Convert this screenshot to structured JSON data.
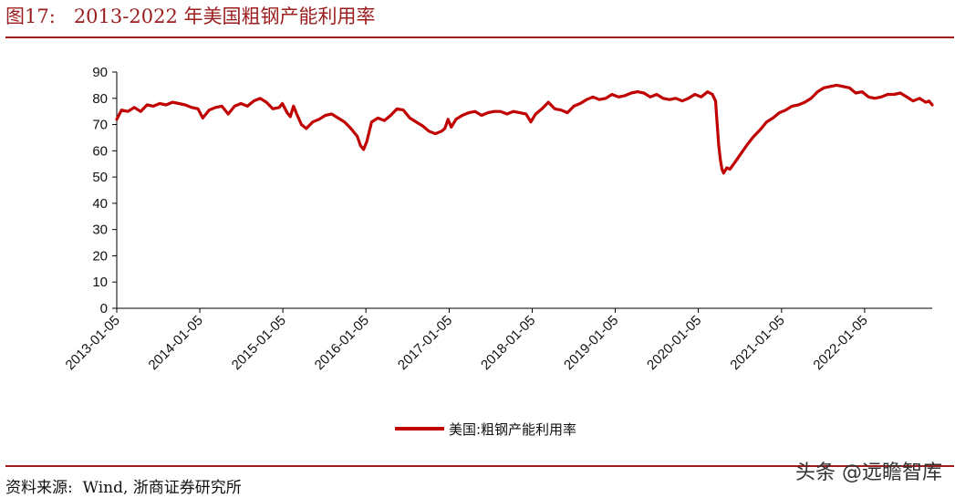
{
  "header": {
    "title": "图17:   2013-2022 年美国粗钢产能利用率"
  },
  "footer": {
    "source": "资料来源:  Wind, 浙商证券研究所",
    "watermark": "头条 @远瞻智库"
  },
  "colors": {
    "line": "#c00000",
    "rule": "#a11b1b"
  },
  "chart_data": {
    "type": "line",
    "title": "",
    "xlabel": "",
    "ylabel": "",
    "ylim": [
      0,
      90
    ],
    "yticks": [
      "0",
      "10",
      "20",
      "30",
      "40",
      "50",
      "60",
      "70",
      "80",
      "90"
    ],
    "xlim": [
      "2013-01-05",
      "2022-10-29"
    ],
    "xticks": [
      "2013-01-05",
      "2014-01-05",
      "2015-01-05",
      "2016-01-05",
      "2017-01-05",
      "2018-01-05",
      "2019-01-05",
      "2020-01-05",
      "2021-01-05",
      "2022-01-05"
    ],
    "grid": false,
    "legend": "bottom-center",
    "series": [
      {
        "name": "美国:粗钢产能利用率",
        "points": [
          [
            "2013-01-05",
            72.0
          ],
          [
            "2013-01-26",
            75.5
          ],
          [
            "2013-02-23",
            75.0
          ],
          [
            "2013-03-23",
            76.5
          ],
          [
            "2013-04-20",
            75.0
          ],
          [
            "2013-05-18",
            77.5
          ],
          [
            "2013-06-15",
            77.0
          ],
          [
            "2013-07-13",
            78.0
          ],
          [
            "2013-08-10",
            77.5
          ],
          [
            "2013-09-07",
            78.5
          ],
          [
            "2013-10-05",
            78.0
          ],
          [
            "2013-11-02",
            77.5
          ],
          [
            "2013-11-30",
            76.5
          ],
          [
            "2013-12-28",
            76.0
          ],
          [
            "2014-01-18",
            72.5
          ],
          [
            "2014-02-15",
            75.5
          ],
          [
            "2014-03-15",
            76.5
          ],
          [
            "2014-04-12",
            77.0
          ],
          [
            "2014-05-10",
            74.0
          ],
          [
            "2014-06-07",
            77.0
          ],
          [
            "2014-07-05",
            78.0
          ],
          [
            "2014-08-02",
            77.0
          ],
          [
            "2014-08-30",
            79.0
          ],
          [
            "2014-09-27",
            80.0
          ],
          [
            "2014-10-25",
            78.5
          ],
          [
            "2014-11-22",
            76.0
          ],
          [
            "2014-12-20",
            76.5
          ],
          [
            "2015-01-03",
            78.0
          ],
          [
            "2015-01-24",
            74.5
          ],
          [
            "2015-02-07",
            73.0
          ],
          [
            "2015-02-21",
            77.0
          ],
          [
            "2015-03-07",
            74.0
          ],
          [
            "2015-03-28",
            70.0
          ],
          [
            "2015-04-18",
            68.5
          ],
          [
            "2015-05-16",
            71.0
          ],
          [
            "2015-06-13",
            72.0
          ],
          [
            "2015-07-11",
            73.5
          ],
          [
            "2015-08-08",
            74.0
          ],
          [
            "2015-09-05",
            72.5
          ],
          [
            "2015-10-03",
            71.0
          ],
          [
            "2015-10-31",
            68.5
          ],
          [
            "2015-11-28",
            65.5
          ],
          [
            "2015-12-12",
            62.0
          ],
          [
            "2015-12-26",
            60.5
          ],
          [
            "2016-01-09",
            63.5
          ],
          [
            "2016-01-30",
            71.0
          ],
          [
            "2016-02-27",
            72.5
          ],
          [
            "2016-03-26",
            71.5
          ],
          [
            "2016-04-23",
            73.5
          ],
          [
            "2016-05-21",
            76.0
          ],
          [
            "2016-06-18",
            75.5
          ],
          [
            "2016-07-16",
            72.5
          ],
          [
            "2016-08-13",
            71.0
          ],
          [
            "2016-09-10",
            69.5
          ],
          [
            "2016-10-08",
            67.5
          ],
          [
            "2016-11-05",
            66.5
          ],
          [
            "2016-12-03",
            67.5
          ],
          [
            "2016-12-17",
            68.5
          ],
          [
            "2016-12-31",
            72.0
          ],
          [
            "2017-01-14",
            69.0
          ],
          [
            "2017-02-04",
            72.0
          ],
          [
            "2017-03-04",
            73.5
          ],
          [
            "2017-04-01",
            74.5
          ],
          [
            "2017-04-29",
            75.0
          ],
          [
            "2017-05-27",
            73.5
          ],
          [
            "2017-06-24",
            74.5
          ],
          [
            "2017-07-22",
            75.0
          ],
          [
            "2017-08-19",
            75.0
          ],
          [
            "2017-09-16",
            74.0
          ],
          [
            "2017-10-14",
            75.0
          ],
          [
            "2017-11-11",
            74.5
          ],
          [
            "2017-12-09",
            74.0
          ],
          [
            "2017-12-30",
            71.0
          ],
          [
            "2018-01-20",
            74.0
          ],
          [
            "2018-02-17",
            76.0
          ],
          [
            "2018-03-17",
            78.5
          ],
          [
            "2018-04-14",
            76.0
          ],
          [
            "2018-05-12",
            75.5
          ],
          [
            "2018-06-09",
            74.5
          ],
          [
            "2018-07-07",
            77.0
          ],
          [
            "2018-08-04",
            78.0
          ],
          [
            "2018-09-01",
            79.5
          ],
          [
            "2018-09-29",
            80.5
          ],
          [
            "2018-10-27",
            79.5
          ],
          [
            "2018-11-24",
            80.0
          ],
          [
            "2018-12-22",
            81.5
          ],
          [
            "2019-01-19",
            80.5
          ],
          [
            "2019-02-16",
            81.0
          ],
          [
            "2019-03-16",
            82.0
          ],
          [
            "2019-04-13",
            82.5
          ],
          [
            "2019-05-11",
            82.0
          ],
          [
            "2019-06-08",
            80.5
          ],
          [
            "2019-07-06",
            81.5
          ],
          [
            "2019-08-03",
            80.0
          ],
          [
            "2019-08-31",
            79.5
          ],
          [
            "2019-09-28",
            80.0
          ],
          [
            "2019-10-26",
            79.0
          ],
          [
            "2019-11-23",
            80.0
          ],
          [
            "2019-12-21",
            81.5
          ],
          [
            "2020-01-18",
            80.5
          ],
          [
            "2020-02-15",
            82.5
          ],
          [
            "2020-03-07",
            81.5
          ],
          [
            "2020-03-21",
            79.0
          ],
          [
            "2020-03-28",
            70.0
          ],
          [
            "2020-04-04",
            62.0
          ],
          [
            "2020-04-11",
            56.5
          ],
          [
            "2020-04-18",
            53.0
          ],
          [
            "2020-04-25",
            51.5
          ],
          [
            "2020-05-09",
            53.5
          ],
          [
            "2020-05-23",
            53.0
          ],
          [
            "2020-06-13",
            55.5
          ],
          [
            "2020-07-11",
            59.0
          ],
          [
            "2020-08-08",
            62.5
          ],
          [
            "2020-09-05",
            65.5
          ],
          [
            "2020-10-03",
            68.0
          ],
          [
            "2020-10-31",
            71.0
          ],
          [
            "2020-11-28",
            72.5
          ],
          [
            "2020-12-26",
            74.5
          ],
          [
            "2021-01-23",
            75.5
          ],
          [
            "2021-02-20",
            77.0
          ],
          [
            "2021-03-20",
            77.5
          ],
          [
            "2021-04-17",
            78.5
          ],
          [
            "2021-05-15",
            80.0
          ],
          [
            "2021-06-12",
            82.5
          ],
          [
            "2021-07-10",
            84.0
          ],
          [
            "2021-08-07",
            84.5
          ],
          [
            "2021-09-04",
            85.0
          ],
          [
            "2021-10-02",
            84.5
          ],
          [
            "2021-10-30",
            84.0
          ],
          [
            "2021-11-27",
            82.0
          ],
          [
            "2021-12-25",
            82.5
          ],
          [
            "2022-01-22",
            80.5
          ],
          [
            "2022-02-19",
            80.0
          ],
          [
            "2022-03-19",
            80.5
          ],
          [
            "2022-04-16",
            81.5
          ],
          [
            "2022-05-14",
            81.5
          ],
          [
            "2022-06-11",
            82.0
          ],
          [
            "2022-07-09",
            80.5
          ],
          [
            "2022-08-06",
            79.0
          ],
          [
            "2022-09-03",
            80.0
          ],
          [
            "2022-10-01",
            78.5
          ],
          [
            "2022-10-15",
            79.0
          ],
          [
            "2022-10-29",
            77.5
          ]
        ]
      }
    ]
  }
}
